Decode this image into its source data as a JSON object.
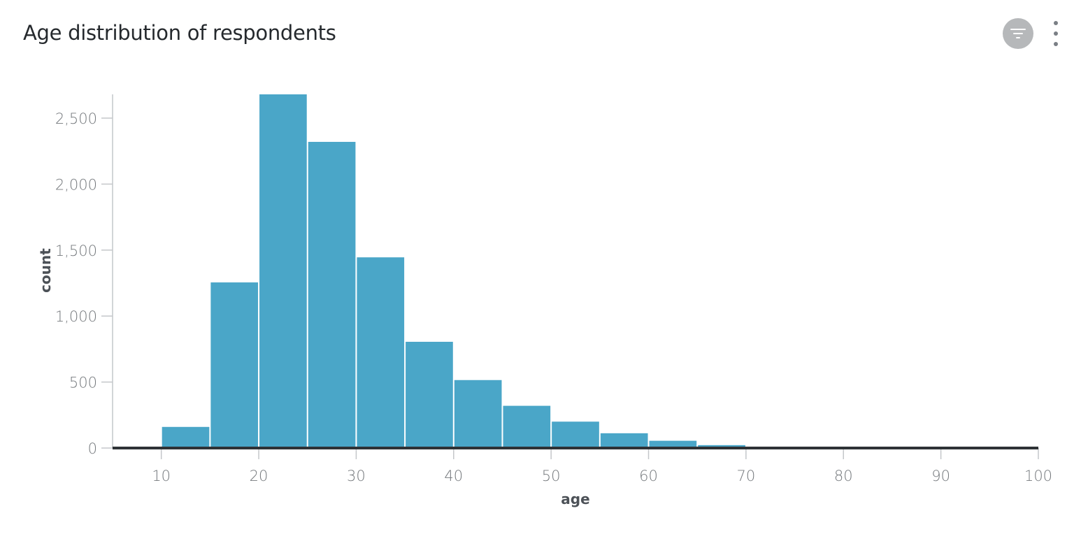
{
  "header": {
    "title": "Age distribution of respondents",
    "filter_icon": "filter-icon",
    "more_icon": "more-vertical-icon"
  },
  "colors": {
    "bar": "#4aa6c8",
    "axis": "#2e3236",
    "tick": "#74787c"
  },
  "chart_data": {
    "type": "bar",
    "subtype": "histogram",
    "title": "Age distribution of respondents",
    "xlabel": "age",
    "ylabel": "count",
    "xlim": [
      5,
      100
    ],
    "ylim": [
      0,
      2680
    ],
    "xticks": [
      10,
      20,
      30,
      40,
      50,
      60,
      70,
      80,
      90,
      100
    ],
    "yticks": [
      0,
      500,
      1000,
      1500,
      2000,
      2500
    ],
    "xtick_labels": [
      "10",
      "20",
      "30",
      "40",
      "50",
      "60",
      "70",
      "80",
      "90",
      "100"
    ],
    "ytick_labels": [
      "0",
      "500",
      "1,000",
      "1,500",
      "2,000",
      "2,500"
    ],
    "bin_width": 5,
    "bins": [
      {
        "start": 10,
        "end": 15,
        "count": 160
      },
      {
        "start": 15,
        "end": 20,
        "count": 1255
      },
      {
        "start": 20,
        "end": 25,
        "count": 2680
      },
      {
        "start": 25,
        "end": 30,
        "count": 2320
      },
      {
        "start": 30,
        "end": 35,
        "count": 1445
      },
      {
        "start": 35,
        "end": 40,
        "count": 805
      },
      {
        "start": 40,
        "end": 45,
        "count": 515
      },
      {
        "start": 45,
        "end": 50,
        "count": 320
      },
      {
        "start": 50,
        "end": 55,
        "count": 200
      },
      {
        "start": 55,
        "end": 60,
        "count": 112
      },
      {
        "start": 60,
        "end": 65,
        "count": 55
      },
      {
        "start": 65,
        "end": 70,
        "count": 22
      },
      {
        "start": 70,
        "end": 75,
        "count": 5
      },
      {
        "start": 75,
        "end": 80,
        "count": 3
      },
      {
        "start": 80,
        "end": 85,
        "count": 2
      },
      {
        "start": 85,
        "end": 90,
        "count": 1
      },
      {
        "start": 90,
        "end": 95,
        "count": 1
      },
      {
        "start": 95,
        "end": 100,
        "count": 1
      }
    ],
    "grid": false,
    "legend": "none"
  }
}
